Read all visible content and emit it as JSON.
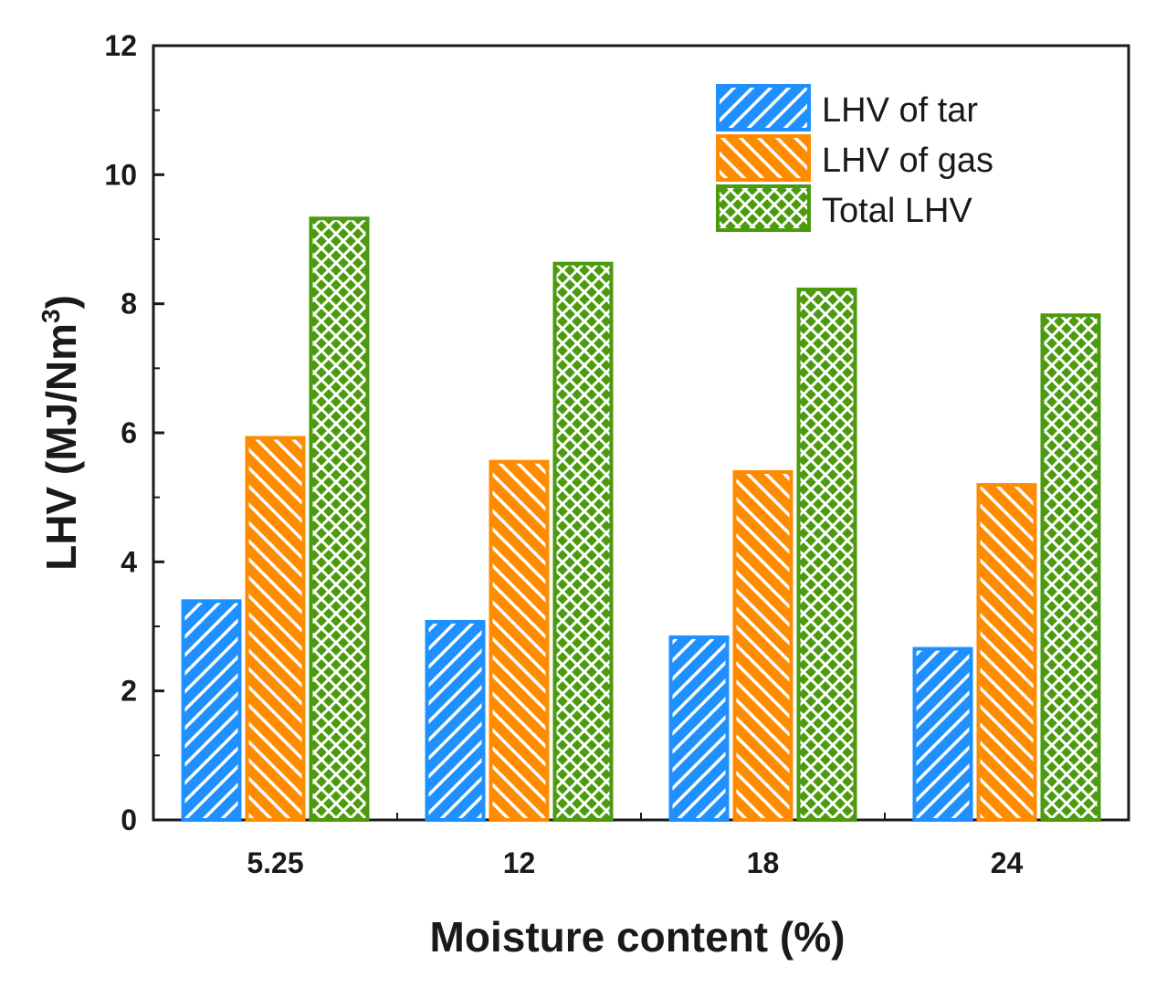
{
  "chart_data": {
    "type": "bar",
    "title": "",
    "xlabel": "Moisture content (%)",
    "ylabel_main": "LHV (MJ/Nm",
    "ylabel_sup": "3",
    "ylabel_close": ")",
    "categories": [
      "5.25",
      "12",
      "18",
      "24"
    ],
    "ylim": [
      0,
      12
    ],
    "yticks": [
      0,
      2,
      4,
      6,
      8,
      10,
      12
    ],
    "grid": false,
    "legend_position": "top-right",
    "series": [
      {
        "name": "LHV of tar",
        "values": [
          3.42,
          3.1,
          2.86,
          2.68
        ],
        "color": "#1e90ff",
        "pattern": "diagonal-right"
      },
      {
        "name": "LHV of gas",
        "values": [
          5.95,
          5.58,
          5.42,
          5.22
        ],
        "color": "#ff8c00",
        "pattern": "diagonal-left"
      },
      {
        "name": "Total LHV",
        "values": [
          9.35,
          8.65,
          8.25,
          7.85
        ],
        "color": "#4c9a0e",
        "pattern": "crosshatch"
      }
    ]
  }
}
